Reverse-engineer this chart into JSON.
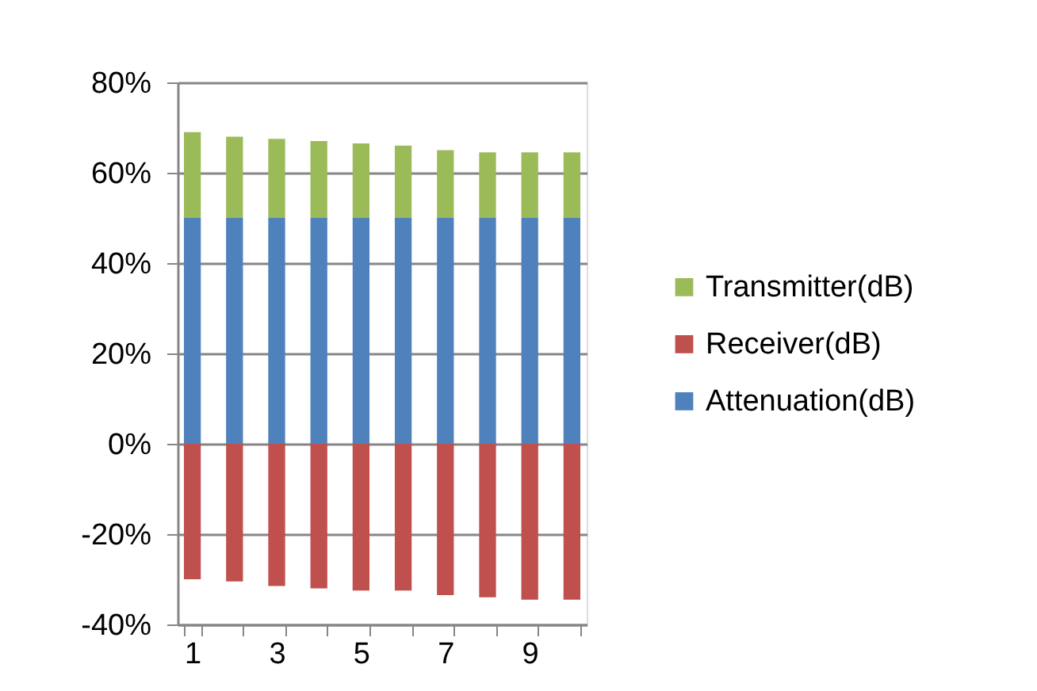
{
  "chart_data": {
    "type": "bar",
    "stacked": true,
    "categories": [
      "1",
      null,
      "3",
      null,
      "5",
      null,
      "7",
      null,
      "9",
      null
    ],
    "series": [
      {
        "name": "Attenuation(dB)",
        "color": "#4f81bd",
        "values": [
          50,
          50,
          50,
          50,
          50,
          50,
          50,
          50,
          50,
          50
        ]
      },
      {
        "name": "Receiver(dB)",
        "color": "#c0504d",
        "values": [
          -30,
          -30.5,
          -31.5,
          -32,
          -32.5,
          -32.5,
          -33.5,
          -34,
          -34.5,
          -34.5
        ]
      },
      {
        "name": "Transmitter(dB)",
        "color": "#9bbb59",
        "values": [
          19,
          18,
          17.5,
          17,
          16.5,
          16,
          15,
          14.5,
          14.5,
          14.5
        ]
      }
    ],
    "ylim": [
      -40,
      80
    ],
    "yticks": [
      {
        "value": -40,
        "label": "-40%"
      },
      {
        "value": -20,
        "label": "-20%"
      },
      {
        "value": 0,
        "label": "0%"
      },
      {
        "value": 20,
        "label": "20%"
      },
      {
        "value": 40,
        "label": "40%"
      },
      {
        "value": 60,
        "label": "60%"
      },
      {
        "value": 80,
        "label": "80%"
      }
    ],
    "grid": "y",
    "legend": "right"
  }
}
